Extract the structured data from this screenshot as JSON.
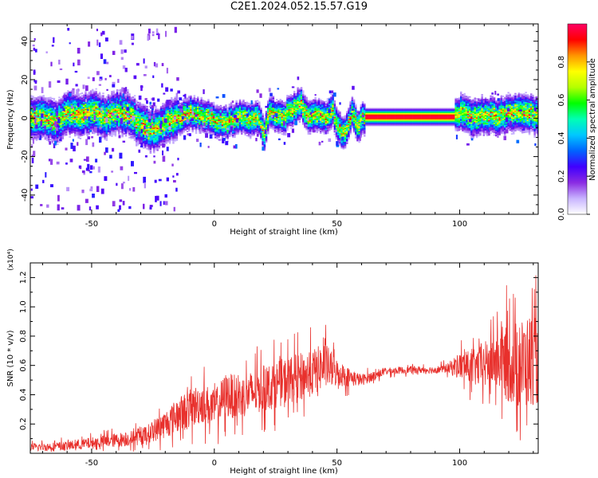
{
  "title": "C2E1.2024.052.15.57.G19",
  "chart_data": [
    {
      "type": "heatmap",
      "xlabel": "Height of straight line (km)",
      "ylabel": "Frequency (Hz)",
      "xlim": [
        -75,
        132
      ],
      "ylim": [
        -50,
        49
      ],
      "x_ticks": [
        -50,
        0,
        50,
        100
      ],
      "y_ticks": [
        -40,
        -20,
        0,
        20,
        40
      ],
      "colorbar": {
        "label": "Normalized spectral amplitude",
        "range": [
          0,
          1
        ],
        "ticks": [
          "0.0",
          "0.2",
          "0.4",
          "0.6",
          "0.8"
        ],
        "colors": [
          "#ffffff",
          "#c8b4ff",
          "#8a2be2",
          "#4000ff",
          "#0064ff",
          "#00c8ff",
          "#00ffb4",
          "#00ff00",
          "#b4ff00",
          "#ffff00",
          "#ff9600",
          "#ff0000",
          "#ff0064"
        ]
      },
      "ridge": [
        [
          -75,
          0
        ],
        [
          -70,
          1
        ],
        [
          -65,
          -2
        ],
        [
          -60,
          3
        ],
        [
          -55,
          2
        ],
        [
          -50,
          4
        ],
        [
          -45,
          0
        ],
        [
          -40,
          4
        ],
        [
          -35,
          2
        ],
        [
          -30,
          -4
        ],
        [
          -25,
          -6
        ],
        [
          -20,
          -2
        ],
        [
          -15,
          0
        ],
        [
          -10,
          3
        ],
        [
          -5,
          2
        ],
        [
          0,
          -1
        ],
        [
          5,
          -2
        ],
        [
          10,
          1
        ],
        [
          15,
          0
        ],
        [
          18,
          1
        ],
        [
          20,
          -8
        ],
        [
          22,
          3
        ],
        [
          25,
          2
        ],
        [
          28,
          0
        ],
        [
          30,
          4
        ],
        [
          33,
          6
        ],
        [
          35,
          8
        ],
        [
          38,
          0
        ],
        [
          40,
          2
        ],
        [
          45,
          0
        ],
        [
          48,
          4
        ],
        [
          50,
          -4
        ],
        [
          53,
          -8
        ],
        [
          56,
          4
        ],
        [
          58,
          -4
        ],
        [
          60,
          0
        ],
        [
          63,
          1
        ],
        [
          70,
          1
        ],
        [
          80,
          1
        ],
        [
          90,
          1
        ],
        [
          97,
          1
        ],
        [
          100,
          3
        ],
        [
          105,
          0
        ],
        [
          110,
          2
        ],
        [
          115,
          1
        ],
        [
          120,
          3
        ],
        [
          125,
          4
        ],
        [
          130,
          2
        ],
        [
          132,
          1
        ]
      ],
      "flat_band": {
        "x": [
          61,
          98
        ],
        "y": 1
      }
    },
    {
      "type": "line",
      "xlabel": "Height of straight line (km)",
      "ylabel": "SNR (10 * v/v)",
      "y_multiplier": "(x10⁴)",
      "xlim": [
        -75,
        132
      ],
      "ylim": [
        0,
        1.3
      ],
      "x_ticks": [
        -50,
        0,
        50,
        100
      ],
      "y_ticks": [
        "0.2",
        "0.4",
        "0.6",
        "0.8",
        "1.0",
        "1.2"
      ],
      "series_color": "#e8302c",
      "x": [
        -75,
        -60,
        -50,
        -40,
        -30,
        -25,
        -20,
        -15,
        -10,
        -5,
        0,
        5,
        10,
        20,
        30,
        40,
        45,
        50,
        55,
        60,
        70,
        80,
        90,
        95,
        100,
        105,
        110,
        115,
        120,
        125,
        130,
        132
      ],
      "values": [
        0.04,
        0.05,
        0.07,
        0.09,
        0.11,
        0.15,
        0.2,
        0.26,
        0.3,
        0.35,
        0.3,
        0.4,
        0.38,
        0.44,
        0.5,
        0.55,
        0.6,
        0.55,
        0.52,
        0.5,
        0.56,
        0.57,
        0.57,
        0.58,
        0.6,
        0.58,
        0.6,
        0.64,
        0.62,
        0.6,
        0.65,
        0.6
      ],
      "noise": [
        0.03,
        0.04,
        0.05,
        0.06,
        0.07,
        0.09,
        0.12,
        0.15,
        0.17,
        0.18,
        0.16,
        0.2,
        0.18,
        0.2,
        0.2,
        0.2,
        0.2,
        0.12,
        0.08,
        0.05,
        0.03,
        0.03,
        0.03,
        0.04,
        0.12,
        0.15,
        0.2,
        0.25,
        0.35,
        0.4,
        0.4,
        0.35
      ]
    }
  ]
}
